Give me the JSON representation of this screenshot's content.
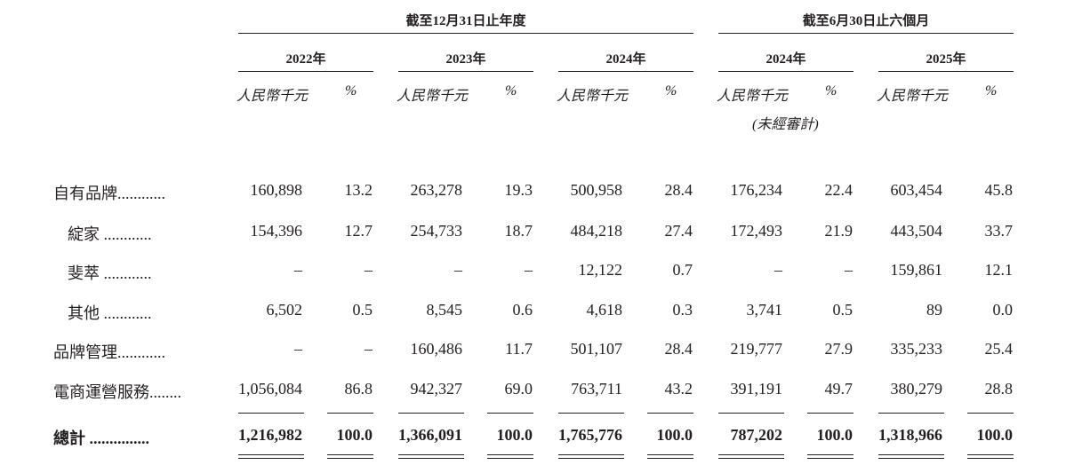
{
  "header": {
    "period_full_year": "截至12月31日止年度",
    "period_half_year": "截至6月30日止六個月",
    "years": [
      "2022年",
      "2023年",
      "2024年",
      "2024年",
      "2025年"
    ],
    "unit_rmb": "人民幣千元",
    "unit_pct": "%",
    "unaudited": "(未經審計)"
  },
  "rows": [
    {
      "label": "自有品牌............",
      "cells": [
        "160,898",
        "13.2",
        "263,278",
        "19.3",
        "500,958",
        "28.4",
        "176,234",
        "22.4",
        "603,454",
        "45.8"
      ]
    },
    {
      "label": "綻家 ............",
      "cells": [
        "154,396",
        "12.7",
        "254,733",
        "18.7",
        "484,218",
        "27.4",
        "172,493",
        "21.9",
        "443,504",
        "33.7"
      ]
    },
    {
      "label": "斐萃 ............",
      "cells": [
        "–",
        "–",
        "–",
        "–",
        "12,122",
        "0.7",
        "–",
        "–",
        "159,861",
        "12.1"
      ]
    },
    {
      "label": "其他 ............",
      "cells": [
        "6,502",
        "0.5",
        "8,545",
        "0.6",
        "4,618",
        "0.3",
        "3,741",
        "0.5",
        "89",
        "0.0"
      ]
    },
    {
      "label": "品牌管理............",
      "cells": [
        "–",
        "–",
        "160,486",
        "11.7",
        "501,107",
        "28.4",
        "219,777",
        "27.9",
        "335,233",
        "25.4"
      ]
    },
    {
      "label": "電商運營服務........",
      "cells": [
        "1,056,084",
        "86.8",
        "942,327",
        "69.0",
        "763,711",
        "43.2",
        "391,191",
        "49.7",
        "380,279",
        "28.8"
      ]
    }
  ],
  "total": {
    "label": "總計 ...............",
    "cells": [
      "1,216,982",
      "100.0",
      "1,366,091",
      "100.0",
      "1,765,776",
      "100.0",
      "787,202",
      "100.0",
      "1,318,966",
      "100.0"
    ]
  }
}
